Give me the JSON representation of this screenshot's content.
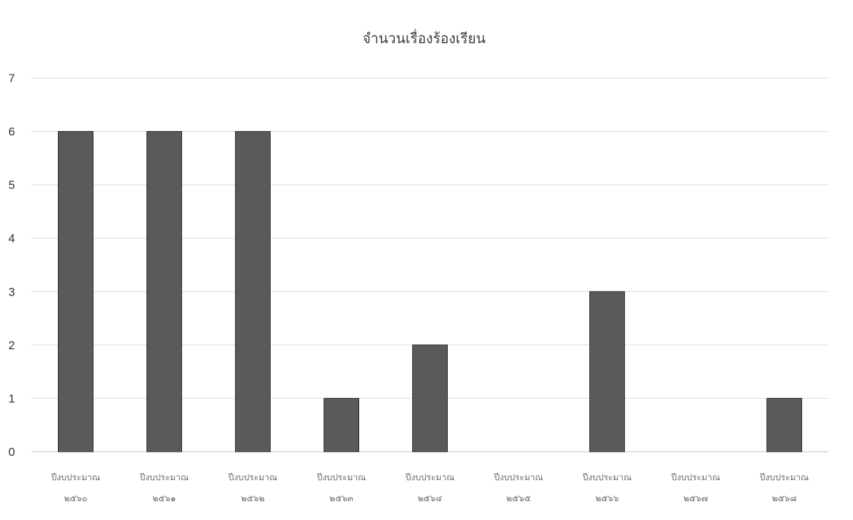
{
  "chart_data": {
    "type": "bar",
    "title": "จำนวนเรื่องร้องเรียน",
    "xlabel": "",
    "ylabel": "",
    "ylim": [
      0,
      7
    ],
    "yticks": [
      "0",
      "1",
      "2",
      "3",
      "4",
      "5",
      "6",
      "7"
    ],
    "grid": true,
    "categories": [
      [
        "ปีงบประมาณ",
        "๒๕๖๐"
      ],
      [
        "ปีงบประมาณ",
        "๒๕๖๑"
      ],
      [
        "ปีงบประมาณ",
        "๒๕๖๒"
      ],
      [
        "ปีงบประมาณ",
        "๒๕๖๓"
      ],
      [
        "ปีงบประมาณ",
        "๒๕๖๔"
      ],
      [
        "ปีงบประมาณ",
        "๒๕๖๕"
      ],
      [
        "ปีงบประมาณ",
        "๒๕๖๖"
      ],
      [
        "ปีงบประมาณ",
        "๒๕๖๗"
      ],
      [
        "ปีงบประมาณ",
        "๒๕๖๘"
      ]
    ],
    "values": [
      6,
      6,
      6,
      1,
      2,
      0,
      3,
      0,
      1
    ],
    "bar_color": "#5a5a5a"
  }
}
